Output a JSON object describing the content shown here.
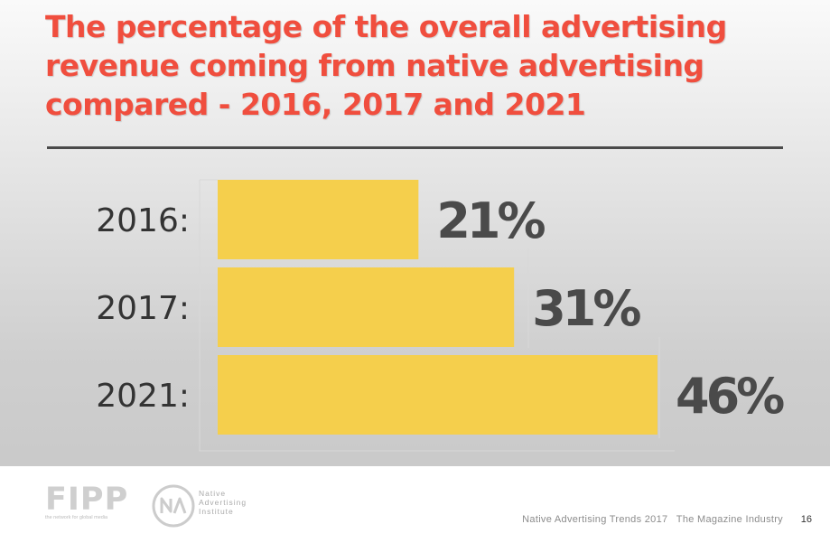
{
  "title": "The percentage of the overall advertising revenue coming from native advertising compared - 2016, 2017 and 2021",
  "chart_data": {
    "type": "bar",
    "orientation": "horizontal",
    "title": "The percentage of the overall advertising revenue coming from native advertising compared - 2016, 2017 and 2021",
    "categories": [
      "2016",
      "2017",
      "2021"
    ],
    "category_labels": [
      "2016:",
      "2017:",
      "2021:"
    ],
    "values": [
      21,
      31,
      46
    ],
    "data_labels": [
      "21%",
      "31%",
      "46%"
    ],
    "unit": "%",
    "xlim": [
      0,
      46
    ],
    "bar_color": "#f5cf4c",
    "label_color": "#4a4a4a",
    "grid": false,
    "legend": false
  },
  "footer": {
    "fipp_logo_text": "FIPP",
    "fipp_tagline": "the network for global media",
    "nai_logo_text": [
      "Native",
      "Advertising",
      "Institute"
    ],
    "report_title": "Native Advertising Trends 2017",
    "report_subtitle": "The Magazine Industry",
    "page_number": "16"
  },
  "colors": {
    "title": "#f04e3e",
    "rule": "#4a4a4a",
    "bar": "#f5cf4c"
  }
}
